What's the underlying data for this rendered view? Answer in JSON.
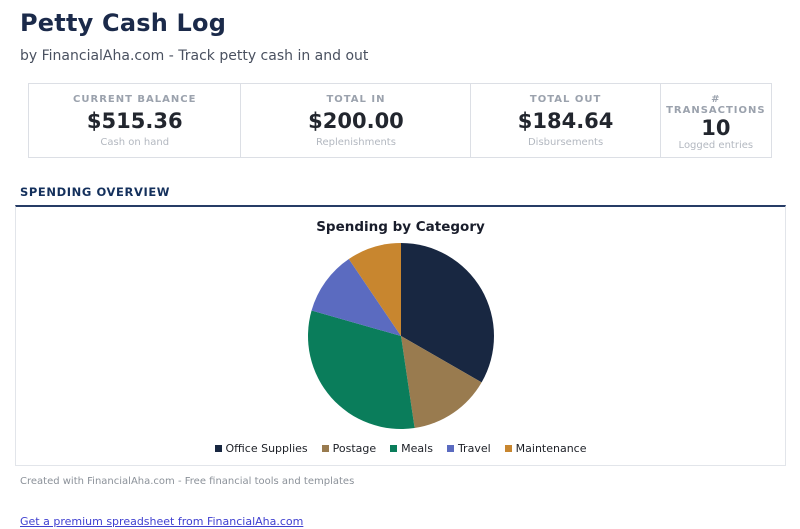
{
  "page": {
    "title": "Petty Cash Log",
    "subtitle": "by FinancialAha.com - Track petty cash in and out"
  },
  "stats": {
    "cards": [
      {
        "label": "CURRENT BALANCE",
        "value": "$515.36",
        "sublabel": "Cash on hand"
      },
      {
        "label": "TOTAL IN",
        "value": "$200.00",
        "sublabel": "Replenishments"
      },
      {
        "label": "TOTAL OUT",
        "value": "$184.64",
        "sublabel": "Disbursements"
      },
      {
        "label": "# TRANSACTIONS",
        "value": "10",
        "sublabel": "Logged entries"
      }
    ]
  },
  "section": {
    "heading": "SPENDING OVERVIEW"
  },
  "chart_data": {
    "type": "pie",
    "title": "Spending by Category",
    "categories": [
      "Office Supplies",
      "Postage",
      "Meals",
      "Travel",
      "Maintenance"
    ],
    "values": [
      61.5,
      26.5,
      58.64,
      20.5,
      17.5
    ],
    "percent_estimates": [
      33.3,
      14.4,
      31.8,
      11.1,
      9.5
    ],
    "colors": [
      "#182741",
      "#997B4F",
      "#0A7D5B",
      "#5B6BC0",
      "#C8862F"
    ],
    "total": 184.64,
    "start_angle_deg": 0,
    "direction": "clockwise",
    "legend_position": "bottom"
  },
  "footer": {
    "credit": "Created with FinancialAha.com - Free financial tools and templates",
    "link": "Get a premium spreadsheet from FinancialAha.com"
  },
  "theme": {
    "heading_navy": "#1b2a4a",
    "section_rule_navy": "#263c66",
    "border_gray": "#dcdfe5",
    "link_blue": "#3f3fd0"
  }
}
